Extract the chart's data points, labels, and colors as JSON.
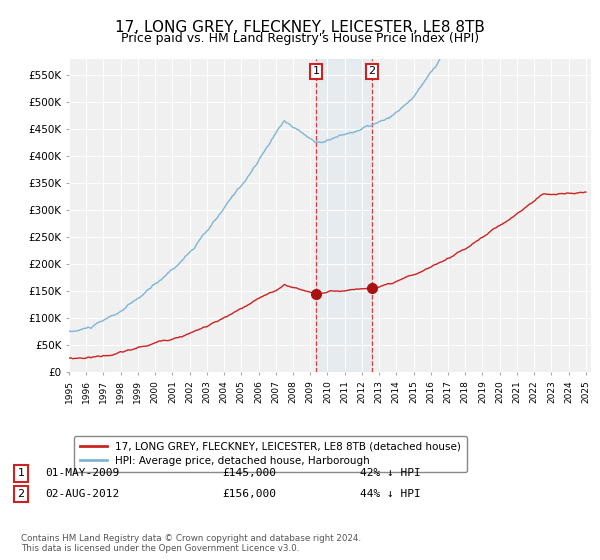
{
  "title": "17, LONG GREY, FLECKNEY, LEICESTER, LE8 8TB",
  "subtitle": "Price paid vs. HM Land Registry's House Price Index (HPI)",
  "title_fontsize": 11,
  "subtitle_fontsize": 9,
  "ylabel_ticks": [
    "£0",
    "£50K",
    "£100K",
    "£150K",
    "£200K",
    "£250K",
    "£300K",
    "£350K",
    "£400K",
    "£450K",
    "£500K",
    "£550K"
  ],
  "ytick_values": [
    0,
    50000,
    100000,
    150000,
    200000,
    250000,
    300000,
    350000,
    400000,
    450000,
    500000,
    550000
  ],
  "ylim": [
    0,
    580000
  ],
  "hpi_color": "#7eb5d6",
  "price_color": "#cc2222",
  "transaction1": {
    "date": "01-MAY-2009",
    "price": 145000,
    "price_str": "£145,000",
    "label": "42% ↓ HPI",
    "x_year": 2009.33
  },
  "transaction2": {
    "date": "02-AUG-2012",
    "price": 156000,
    "price_str": "£156,000",
    "label": "44% ↓ HPI",
    "x_year": 2012.58
  },
  "legend_label1": "17, LONG GREY, FLECKNEY, LEICESTER, LE8 8TB (detached house)",
  "legend_label2": "HPI: Average price, detached house, Harborough",
  "footnote": "Contains HM Land Registry data © Crown copyright and database right 2024.\nThis data is licensed under the Open Government Licence v3.0.",
  "xlim_start": 1995.0,
  "xlim_end": 2025.3,
  "background_color": "#ffffff",
  "plot_bg_color": "#f0f0f0",
  "hpi_seed": 10,
  "price_seed": 20
}
